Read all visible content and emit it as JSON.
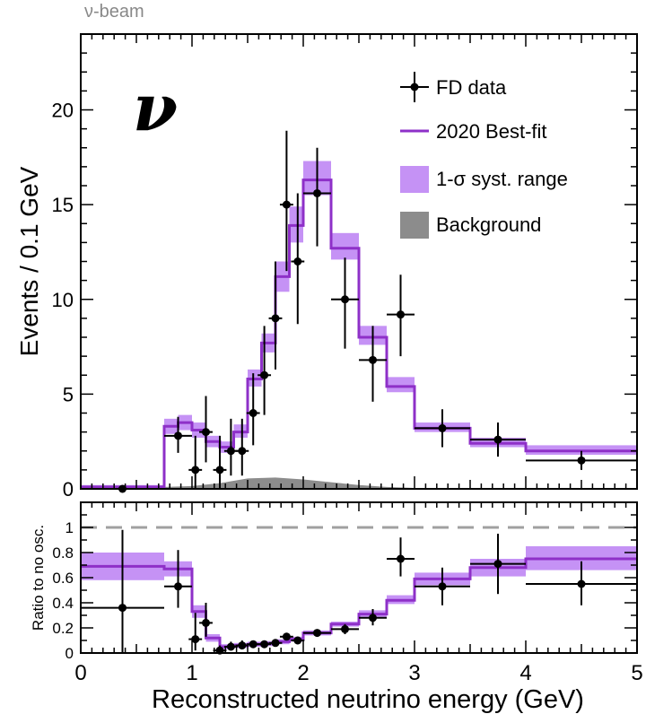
{
  "header": {
    "beam_label": "ν-beam",
    "nu_symbol": "ν"
  },
  "colors": {
    "bestfit": "#8e30c8",
    "band": "#c592f5",
    "background": "#8c8c8c",
    "data": "#000000",
    "ratio_ref": "#a0a0a0"
  },
  "chart_data": [
    {
      "type": "histogram",
      "title": "",
      "xlabel": "",
      "ylabel": "Events / 0.1 GeV",
      "xlim": [
        0,
        5
      ],
      "ylim": [
        0,
        24
      ],
      "yticks": [
        0,
        5,
        10,
        15,
        20
      ],
      "legend": {
        "placement": "top-right",
        "entries": [
          {
            "label": "FD data",
            "kind": "points"
          },
          {
            "label": "2020 Best-fit",
            "kind": "line"
          },
          {
            "label": "1-σ syst. range",
            "kind": "band"
          },
          {
            "label": "Background",
            "kind": "fill"
          }
        ]
      },
      "bin_edges": [
        0,
        0.75,
        0.875,
        1.0,
        1.125,
        1.25,
        1.375,
        1.5,
        1.625,
        1.75,
        1.875,
        2.0,
        2.25,
        2.5,
        2.75,
        3.0,
        3.5,
        4.0,
        5.0
      ],
      "bestfit": [
        0.1,
        3.3,
        3.5,
        3.1,
        2.5,
        2.2,
        3.0,
        5.8,
        7.7,
        11.2,
        13.9,
        16.3,
        12.7,
        8.0,
        5.4,
        3.2,
        2.4,
        2.0
      ],
      "band_low": [
        0.0,
        2.9,
        3.1,
        2.7,
        2.2,
        1.9,
        2.7,
        5.4,
        7.2,
        10.4,
        13.0,
        15.5,
        12.1,
        7.6,
        5.1,
        3.0,
        2.2,
        1.8
      ],
      "band_high": [
        0.2,
        3.7,
        3.9,
        3.5,
        2.8,
        2.5,
        3.4,
        6.3,
        8.2,
        12.0,
        14.9,
        17.3,
        13.5,
        8.6,
        5.9,
        3.5,
        2.7,
        2.3
      ],
      "background_x": [
        0.75,
        1.0,
        1.25,
        1.5,
        1.75,
        2.0,
        2.25,
        2.5,
        2.75,
        3.0,
        5.0
      ],
      "background_y": [
        0.1,
        0.15,
        0.3,
        0.55,
        0.6,
        0.5,
        0.35,
        0.2,
        0.1,
        0.05,
        0.05
      ],
      "data": [
        {
          "x": 0.375,
          "xerr": 0.375,
          "y": 0,
          "ylo": 0,
          "yhi": 0
        },
        {
          "x": 0.875,
          "xerr": 0.125,
          "y": 2.8,
          "ylo": 1.9,
          "yhi": 3.8
        },
        {
          "x": 1.03,
          "xerr": 0.06,
          "y": 1.0,
          "ylo": 0.0,
          "yhi": 2.8
        },
        {
          "x": 1.125,
          "xerr": 0.06,
          "y": 3.0,
          "ylo": 1.4,
          "yhi": 4.9
        },
        {
          "x": 1.25,
          "xerr": 0.06,
          "y": 1.0,
          "ylo": 0.0,
          "yhi": 2.8
        },
        {
          "x": 1.35,
          "xerr": 0.06,
          "y": 2.0,
          "ylo": 0.7,
          "yhi": 3.7
        },
        {
          "x": 1.45,
          "xerr": 0.06,
          "y": 2.0,
          "ylo": 0.7,
          "yhi": 3.7
        },
        {
          "x": 1.55,
          "xerr": 0.06,
          "y": 4.0,
          "ylo": 2.3,
          "yhi": 6.1
        },
        {
          "x": 1.65,
          "xerr": 0.06,
          "y": 6.0,
          "ylo": 3.9,
          "yhi": 8.6
        },
        {
          "x": 1.75,
          "xerr": 0.06,
          "y": 9.0,
          "ylo": 6.3,
          "yhi": 12.0
        },
        {
          "x": 1.85,
          "xerr": 0.06,
          "y": 15.0,
          "ylo": 11.5,
          "yhi": 18.9
        },
        {
          "x": 1.95,
          "xerr": 0.06,
          "y": 12.0,
          "ylo": 8.7,
          "yhi": 15.6
        },
        {
          "x": 2.125,
          "xerr": 0.125,
          "y": 15.6,
          "ylo": 12.8,
          "yhi": 18.0
        },
        {
          "x": 2.375,
          "xerr": 0.125,
          "y": 10.0,
          "ylo": 7.4,
          "yhi": 12.2
        },
        {
          "x": 2.625,
          "xerr": 0.125,
          "y": 6.8,
          "ylo": 4.6,
          "yhi": 8.6
        },
        {
          "x": 2.875,
          "xerr": 0.125,
          "y": 9.2,
          "ylo": 7.0,
          "yhi": 11.3
        },
        {
          "x": 3.25,
          "xerr": 0.25,
          "y": 3.2,
          "ylo": 2.2,
          "yhi": 4.2
        },
        {
          "x": 3.75,
          "xerr": 0.25,
          "y": 2.6,
          "ylo": 1.7,
          "yhi": 3.5
        },
        {
          "x": 4.5,
          "xerr": 0.5,
          "y": 1.5,
          "ylo": 1.0,
          "yhi": 2.0
        }
      ]
    },
    {
      "type": "histogram",
      "title": "",
      "xlabel": "Reconstructed neutrino energy (GeV)",
      "ylabel": "Ratio to no osc.",
      "xlim": [
        0,
        5
      ],
      "ylim": [
        0,
        1.2
      ],
      "yticks": [
        0,
        0.2,
        0.4,
        0.6,
        0.8,
        1
      ],
      "ytick_labels": [
        "0",
        "0.2",
        "0.4",
        "0.6",
        "0.8",
        "1"
      ],
      "xticks": [
        0,
        1,
        2,
        3,
        4,
        5
      ],
      "reference_line": 1.0,
      "bin_edges": [
        0,
        0.75,
        1.0,
        1.125,
        1.25,
        1.375,
        1.5,
        1.625,
        1.75,
        1.875,
        2.0,
        2.25,
        2.5,
        2.75,
        3.0,
        3.5,
        4.0,
        5.0
      ],
      "bestfit": [
        0.69,
        0.67,
        0.33,
        0.12,
        0.05,
        0.06,
        0.07,
        0.075,
        0.09,
        0.11,
        0.16,
        0.23,
        0.31,
        0.42,
        0.59,
        0.68,
        0.75
      ],
      "band_low": [
        0.58,
        0.61,
        0.28,
        0.09,
        0.03,
        0.04,
        0.05,
        0.055,
        0.07,
        0.09,
        0.14,
        0.21,
        0.28,
        0.39,
        0.54,
        0.61,
        0.66
      ],
      "band_high": [
        0.8,
        0.73,
        0.38,
        0.15,
        0.07,
        0.08,
        0.09,
        0.095,
        0.11,
        0.13,
        0.18,
        0.25,
        0.34,
        0.46,
        0.64,
        0.75,
        0.85
      ],
      "data": [
        {
          "x": 0.375,
          "xerr": 0.375,
          "y": 0.36,
          "ylo": 0.0,
          "yhi": 0.98
        },
        {
          "x": 0.875,
          "xerr": 0.125,
          "y": 0.53,
          "ylo": 0.36,
          "yhi": 0.82
        },
        {
          "x": 1.03,
          "xerr": 0.06,
          "y": 0.11,
          "ylo": 0.02,
          "yhi": 0.32
        },
        {
          "x": 1.125,
          "xerr": 0.06,
          "y": 0.24,
          "ylo": 0.13,
          "yhi": 0.4
        },
        {
          "x": 1.25,
          "xerr": 0.06,
          "y": 0.02,
          "ylo": 0.0,
          "yhi": 0.06
        },
        {
          "x": 1.35,
          "xerr": 0.06,
          "y": 0.05,
          "ylo": 0.02,
          "yhi": 0.09
        },
        {
          "x": 1.45,
          "xerr": 0.06,
          "y": 0.06,
          "ylo": 0.03,
          "yhi": 0.1
        },
        {
          "x": 1.55,
          "xerr": 0.06,
          "y": 0.07,
          "ylo": 0.04,
          "yhi": 0.1
        },
        {
          "x": 1.65,
          "xerr": 0.06,
          "y": 0.07,
          "ylo": 0.04,
          "yhi": 0.1
        },
        {
          "x": 1.75,
          "xerr": 0.06,
          "y": 0.08,
          "ylo": 0.05,
          "yhi": 0.11
        },
        {
          "x": 1.85,
          "xerr": 0.06,
          "y": 0.13,
          "ylo": 0.1,
          "yhi": 0.16
        },
        {
          "x": 1.95,
          "xerr": 0.06,
          "y": 0.1,
          "ylo": 0.07,
          "yhi": 0.13
        },
        {
          "x": 2.125,
          "xerr": 0.125,
          "y": 0.16,
          "ylo": 0.13,
          "yhi": 0.18
        },
        {
          "x": 2.375,
          "xerr": 0.125,
          "y": 0.19,
          "ylo": 0.15,
          "yhi": 0.23
        },
        {
          "x": 2.625,
          "xerr": 0.125,
          "y": 0.28,
          "ylo": 0.22,
          "yhi": 0.35
        },
        {
          "x": 2.875,
          "xerr": 0.125,
          "y": 0.75,
          "ylo": 0.61,
          "yhi": 0.92
        },
        {
          "x": 3.25,
          "xerr": 0.25,
          "y": 0.53,
          "ylo": 0.38,
          "yhi": 0.68
        },
        {
          "x": 3.75,
          "xerr": 0.25,
          "y": 0.71,
          "ylo": 0.47,
          "yhi": 0.95
        },
        {
          "x": 4.5,
          "xerr": 0.5,
          "y": 0.55,
          "ylo": 0.38,
          "yhi": 0.73
        }
      ]
    }
  ]
}
